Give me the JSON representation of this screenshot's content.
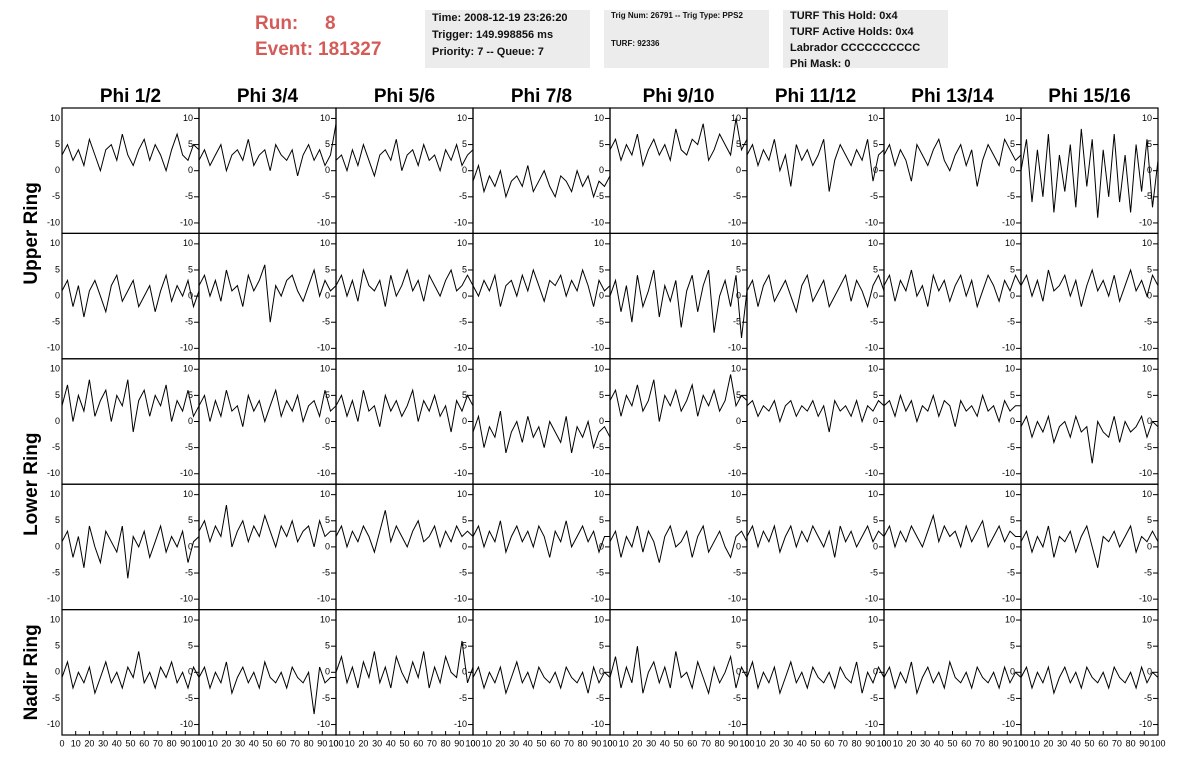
{
  "header": {
    "run_label": "Run:",
    "run": "8",
    "event_label": "Event:",
    "event": "181327",
    "box1": [
      "Time: 2008-12-19 23:26:20",
      "Trigger: 149.998856 ms",
      "Priority: 7 -- Queue: 7"
    ],
    "box2": [
      "Trig Num: 26791 -- Trig Type: PPS2",
      "TURF: 92336"
    ],
    "box3": [
      "TURF This Hold: 0x4",
      "TURF Active Holds: 0x4",
      "Labrador CCCCCCCCCC",
      "Phi Mask: 0"
    ]
  },
  "chart_data": {
    "type": "line",
    "color": "#000000",
    "columns": [
      "Phi 1/2",
      "Phi 3/4",
      "Phi 5/6",
      "Phi 7/8",
      "Phi 9/10",
      "Phi 11/12",
      "Phi 13/14",
      "Phi 15/16"
    ],
    "rows": [
      "Upper Ring",
      "Lower Ring",
      "Nadir Ring"
    ],
    "x": [
      0,
      4,
      8,
      12,
      16,
      20,
      24,
      28,
      32,
      36,
      40,
      44,
      48,
      52,
      56,
      60,
      64,
      68,
      72,
      76,
      80,
      84,
      88,
      92,
      96,
      100
    ],
    "xlim": [
      0,
      100
    ],
    "xticks": [
      0,
      10,
      20,
      30,
      40,
      50,
      60,
      70,
      80,
      90,
      100
    ],
    "ylim": [
      -12,
      12
    ],
    "yticks": [
      -10,
      -5,
      0,
      5,
      10
    ],
    "series": [
      {
        "values": [
          3,
          5,
          2,
          4,
          1,
          6,
          3,
          0,
          4,
          5,
          2,
          7,
          3,
          1,
          4,
          6,
          2,
          5,
          3,
          0,
          4,
          7,
          3,
          2,
          5,
          4
        ]
      },
      {
        "values": [
          2,
          4,
          1,
          3,
          5,
          0,
          3,
          4,
          2,
          6,
          1,
          3,
          4,
          0,
          5,
          3,
          2,
          4,
          -1,
          3,
          5,
          2,
          4,
          1,
          3,
          9
        ]
      },
      {
        "values": [
          2,
          3,
          0,
          4,
          1,
          5,
          2,
          -1,
          3,
          4,
          2,
          6,
          0,
          3,
          4,
          1,
          5,
          2,
          3,
          0,
          4,
          2,
          5,
          1,
          3,
          4
        ]
      },
      {
        "values": [
          -2,
          1,
          -4,
          -1,
          -3,
          0,
          -5,
          -2,
          -1,
          -3,
          1,
          -4,
          -2,
          0,
          -3,
          -5,
          -1,
          -2,
          -4,
          0,
          -3,
          -1,
          -5,
          -2,
          -3,
          -1
        ]
      },
      {
        "values": [
          4,
          6,
          2,
          5,
          3,
          7,
          1,
          4,
          6,
          3,
          5,
          2,
          8,
          4,
          3,
          6,
          5,
          9,
          2,
          4,
          7,
          5,
          3,
          10,
          4,
          6
        ]
      },
      {
        "values": [
          3,
          5,
          1,
          4,
          2,
          6,
          0,
          3,
          -3,
          5,
          2,
          4,
          1,
          3,
          6,
          -4,
          2,
          5,
          3,
          1,
          4,
          2,
          6,
          -2,
          3,
          4
        ]
      },
      {
        "values": [
          3,
          5,
          1,
          4,
          2,
          -2,
          5,
          3,
          1,
          4,
          6,
          2,
          0,
          3,
          5,
          1,
          4,
          -3,
          2,
          5,
          3,
          1,
          6,
          4,
          2,
          3
        ]
      },
      {
        "values": [
          0,
          6,
          -6,
          4,
          -5,
          7,
          -8,
          3,
          -4,
          5,
          -7,
          8,
          -3,
          6,
          -9,
          4,
          -5,
          7,
          -6,
          3,
          -8,
          5,
          -4,
          6,
          -7,
          2
        ]
      },
      {
        "values": [
          1,
          3,
          -2,
          2,
          -4,
          1,
          3,
          0,
          -3,
          2,
          4,
          -1,
          1,
          3,
          -2,
          0,
          2,
          -3,
          1,
          4,
          -1,
          2,
          0,
          3,
          -2,
          1
        ]
      },
      {
        "values": [
          2,
          4,
          0,
          3,
          -1,
          5,
          1,
          2,
          -2,
          4,
          1,
          3,
          6,
          -5,
          2,
          0,
          3,
          4,
          1,
          -1,
          2,
          5,
          0,
          3,
          1,
          2
        ]
      },
      {
        "values": [
          2,
          4,
          0,
          3,
          -1,
          5,
          2,
          1,
          3,
          -2,
          4,
          0,
          2,
          5,
          1,
          3,
          -1,
          4,
          2,
          0,
          3,
          5,
          1,
          2,
          4,
          2
        ]
      },
      {
        "values": [
          2,
          0,
          3,
          1,
          4,
          -2,
          2,
          3,
          0,
          4,
          1,
          5,
          2,
          -1,
          3,
          2,
          4,
          0,
          3,
          1,
          5,
          2,
          -2,
          3,
          1,
          2
        ]
      },
      {
        "values": [
          0,
          3,
          -3,
          2,
          -5,
          4,
          -2,
          1,
          5,
          -4,
          2,
          -1,
          3,
          -6,
          1,
          4,
          -3,
          2,
          5,
          -7,
          0,
          3,
          -2,
          4,
          -8,
          1
        ]
      },
      {
        "values": [
          1,
          3,
          -2,
          2,
          4,
          -1,
          1,
          3,
          0,
          -3,
          2,
          4,
          -1,
          1,
          3,
          -2,
          0,
          2,
          4,
          -1,
          3,
          1,
          -2,
          2,
          4,
          1
        ]
      },
      {
        "values": [
          2,
          4,
          -1,
          3,
          1,
          5,
          0,
          2,
          -2,
          4,
          1,
          3,
          -1,
          2,
          4,
          0,
          3,
          -2,
          1,
          4,
          2,
          -1,
          3,
          1,
          4,
          2
        ]
      },
      {
        "values": [
          2,
          4,
          0,
          3,
          -1,
          5,
          1,
          2,
          4,
          0,
          3,
          -2,
          2,
          5,
          1,
          3,
          0,
          4,
          -1,
          2,
          5,
          1,
          3,
          0,
          4,
          2
        ]
      },
      {
        "values": [
          3,
          7,
          0,
          5,
          2,
          8,
          1,
          4,
          6,
          0,
          5,
          3,
          8,
          -2,
          4,
          6,
          1,
          5,
          3,
          7,
          0,
          4,
          2,
          6,
          1,
          3
        ]
      },
      {
        "values": [
          3,
          5,
          0,
          4,
          1,
          6,
          2,
          3,
          -1,
          5,
          2,
          4,
          0,
          3,
          6,
          1,
          4,
          2,
          5,
          0,
          3,
          4,
          1,
          6,
          2,
          3
        ]
      },
      {
        "values": [
          3,
          5,
          1,
          4,
          0,
          6,
          2,
          3,
          -1,
          5,
          2,
          4,
          1,
          3,
          6,
          0,
          4,
          2,
          5,
          1,
          3,
          -2,
          4,
          2,
          5,
          3
        ]
      },
      {
        "values": [
          -2,
          1,
          -5,
          -1,
          -3,
          2,
          -6,
          -2,
          0,
          -4,
          1,
          -3,
          -1,
          -5,
          0,
          -2,
          -4,
          1,
          -6,
          -1,
          -3,
          0,
          -5,
          -2,
          -1,
          -3
        ]
      },
      {
        "values": [
          4,
          6,
          1,
          5,
          3,
          7,
          2,
          4,
          8,
          0,
          5,
          3,
          6,
          2,
          4,
          7,
          1,
          5,
          3,
          6,
          2,
          4,
          9,
          3,
          5,
          4
        ]
      },
      {
        "values": [
          3,
          4,
          1,
          3,
          2,
          4,
          0,
          3,
          4,
          1,
          3,
          2,
          4,
          1,
          3,
          -2,
          4,
          2,
          3,
          1,
          4,
          0,
          3,
          2,
          4,
          3
        ]
      },
      {
        "values": [
          3,
          4,
          1,
          5,
          2,
          4,
          0,
          3,
          2,
          5,
          1,
          4,
          3,
          -1,
          4,
          2,
          3,
          1,
          5,
          2,
          3,
          0,
          4,
          2,
          3,
          3
        ]
      },
      {
        "values": [
          -1,
          1,
          -3,
          0,
          -2,
          1,
          -4,
          -1,
          0,
          -3,
          1,
          -2,
          -1,
          -8,
          0,
          -2,
          -3,
          1,
          -4,
          0,
          -2,
          -1,
          1,
          -3,
          0,
          -1
        ]
      },
      {
        "values": [
          1,
          3,
          -2,
          2,
          -4,
          4,
          0,
          -3,
          3,
          1,
          -1,
          4,
          -6,
          2,
          0,
          3,
          -2,
          1,
          4,
          -1,
          2,
          0,
          3,
          -3,
          1,
          2
        ]
      },
      {
        "values": [
          3,
          5,
          1,
          4,
          2,
          8,
          0,
          3,
          5,
          1,
          4,
          2,
          6,
          3,
          0,
          4,
          2,
          5,
          1,
          3,
          4,
          0,
          5,
          2,
          3,
          3
        ]
      },
      {
        "values": [
          2,
          4,
          0,
          3,
          1,
          4,
          2,
          -1,
          3,
          7,
          1,
          4,
          2,
          0,
          3,
          5,
          1,
          2,
          4,
          0,
          3,
          1,
          4,
          2,
          3,
          2
        ]
      },
      {
        "values": [
          2,
          4,
          0,
          3,
          1,
          5,
          -1,
          2,
          4,
          1,
          3,
          0,
          4,
          2,
          -2,
          3,
          1,
          5,
          0,
          2,
          4,
          1,
          3,
          -1,
          2,
          2
        ]
      },
      {
        "values": [
          1,
          3,
          -2,
          2,
          0,
          4,
          -1,
          3,
          1,
          -3,
          2,
          4,
          0,
          1,
          3,
          -2,
          2,
          4,
          -1,
          1,
          3,
          0,
          -2,
          2,
          3,
          1
        ]
      },
      {
        "values": [
          2,
          4,
          0,
          3,
          1,
          4,
          -1,
          2,
          4,
          0,
          3,
          1,
          4,
          2,
          0,
          3,
          -2,
          4,
          1,
          3,
          0,
          2,
          4,
          1,
          3,
          2
        ]
      },
      {
        "values": [
          2,
          4,
          0,
          3,
          1,
          4,
          2,
          0,
          3,
          6,
          1,
          4,
          2,
          3,
          0,
          4,
          1,
          3,
          5,
          0,
          2,
          4,
          1,
          3,
          2,
          2
        ]
      },
      {
        "values": [
          1,
          3,
          -1,
          2,
          0,
          4,
          -2,
          2,
          1,
          3,
          -1,
          2,
          4,
          0,
          -4,
          2,
          1,
          3,
          0,
          2,
          4,
          -1,
          2,
          1,
          3,
          1
        ]
      },
      {
        "values": [
          -1,
          2,
          -3,
          0,
          -2,
          1,
          -4,
          -1,
          2,
          -2,
          0,
          -3,
          1,
          -1,
          4,
          -2,
          0,
          -3,
          1,
          -1,
          2,
          -2,
          0,
          -3,
          1,
          -1
        ]
      },
      {
        "values": [
          -1,
          1,
          -3,
          0,
          -2,
          2,
          -4,
          -1,
          1,
          -2,
          0,
          -3,
          2,
          -1,
          -2,
          0,
          -3,
          1,
          -1,
          -2,
          0,
          -8,
          1,
          -2,
          -1,
          -1
        ]
      },
      {
        "values": [
          0,
          3,
          -2,
          1,
          -3,
          2,
          -1,
          4,
          -2,
          1,
          -3,
          3,
          0,
          -2,
          2,
          -1,
          4,
          -3,
          1,
          -2,
          3,
          0,
          -1,
          6,
          -2,
          1
        ]
      },
      {
        "values": [
          -1,
          1,
          -3,
          0,
          -2,
          1,
          -4,
          -1,
          2,
          -2,
          0,
          -3,
          1,
          -1,
          -2,
          0,
          -3,
          1,
          -1,
          -2,
          0,
          -4,
          1,
          -2,
          0,
          -1
        ]
      },
      {
        "values": [
          -1,
          3,
          -3,
          1,
          -2,
          5,
          -4,
          0,
          2,
          -2,
          1,
          -3,
          4,
          -1,
          0,
          -3,
          2,
          -1,
          -4,
          1,
          -2,
          0,
          3,
          -3,
          1,
          -1
        ]
      },
      {
        "values": [
          -1,
          2,
          -3,
          0,
          -2,
          1,
          -4,
          -1,
          2,
          -2,
          0,
          -3,
          1,
          -1,
          -2,
          0,
          -3,
          1,
          -1,
          -2,
          2,
          -4,
          0,
          -2,
          1,
          -1
        ]
      },
      {
        "values": [
          -1,
          1,
          -3,
          0,
          -2,
          2,
          -4,
          -1,
          1,
          -2,
          0,
          -3,
          2,
          -1,
          -2,
          0,
          -3,
          1,
          -1,
          -2,
          0,
          -3,
          1,
          -2,
          0,
          -1
        ]
      },
      {
        "values": [
          -1,
          1,
          -3,
          0,
          -2,
          1,
          -4,
          -1,
          1,
          -2,
          0,
          -3,
          1,
          -1,
          -2,
          0,
          -3,
          1,
          -1,
          -2,
          0,
          -3,
          1,
          -2,
          0,
          -1
        ]
      }
    ]
  }
}
